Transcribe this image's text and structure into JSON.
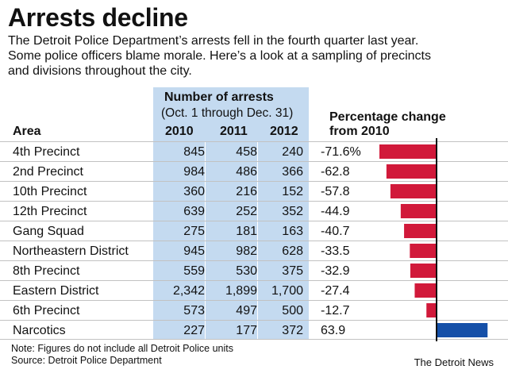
{
  "header": {
    "title": "Arrests decline",
    "description_lines": [
      "The Detroit Police Department’s arrests fell in the fourth quarter last year.",
      "Some police officers blame morale. Here’s a look at a sampling of precincts",
      "and divisions throughout the city."
    ]
  },
  "colors": {
    "shade": "#c4daf0",
    "negative_bar": "#d1193a",
    "positive_bar": "#1550a8",
    "rule": "#c2c2c2"
  },
  "chart_data": {
    "type": "table",
    "column_group_label": "Number of arrests",
    "column_group_sublabel": "(Oct. 1 through Dec. 31)",
    "columns": [
      "Area",
      "2010",
      "2011",
      "2012"
    ],
    "change_label_line1": "Percentage change",
    "change_label_line2": "from 2010",
    "rows": [
      {
        "area": "4th Precinct",
        "y2010": "845",
        "y2011": "458",
        "y2012": "240",
        "pct_label": "-71.6%",
        "pct": -71.6
      },
      {
        "area": "2nd Precinct",
        "y2010": "984",
        "y2011": "486",
        "y2012": "366",
        "pct_label": "-62.8",
        "pct": -62.8
      },
      {
        "area": "10th Precinct",
        "y2010": "360",
        "y2011": "216",
        "y2012": "152",
        "pct_label": "-57.8",
        "pct": -57.8
      },
      {
        "area": "12th Precinct",
        "y2010": "639",
        "y2011": "252",
        "y2012": "352",
        "pct_label": "-44.9",
        "pct": -44.9
      },
      {
        "area": "Gang Squad",
        "y2010": "275",
        "y2011": "181",
        "y2012": "163",
        "pct_label": "-40.7",
        "pct": -40.7
      },
      {
        "area": "Northeastern District",
        "y2010": "945",
        "y2011": "982",
        "y2012": "628",
        "pct_label": "-33.5",
        "pct": -33.5
      },
      {
        "area": "8th Precinct",
        "y2010": "559",
        "y2011": "530",
        "y2012": "375",
        "pct_label": "-32.9",
        "pct": -32.9
      },
      {
        "area": "Eastern District",
        "y2010": "2,342",
        "y2011": "1,899",
        "y2012": "1,700",
        "pct_label": "-27.4",
        "pct": -27.4
      },
      {
        "area": "6th Precinct",
        "y2010": "573",
        "y2011": "497",
        "y2012": "500",
        "pct_label": "-12.7",
        "pct": -12.7
      },
      {
        "area": "Narcotics",
        "y2010": "227",
        "y2011": "177",
        "y2012": "372",
        "pct_label": "63.9",
        "pct": 63.9
      }
    ]
  },
  "footer": {
    "note": "Note: Figures do not include all Detroit Police units",
    "source": "Source: Detroit Police Department",
    "credit": "The Detroit News"
  }
}
